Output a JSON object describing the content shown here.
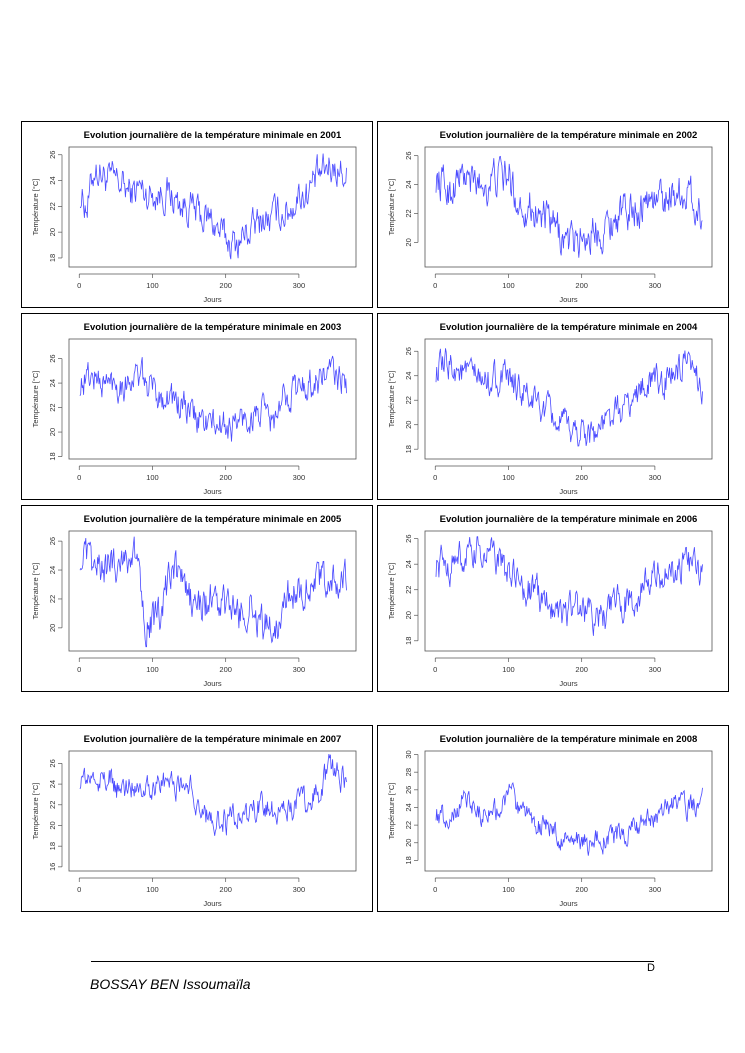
{
  "footer": {
    "author": "BOSSAY BEN Issoumaïla",
    "page_marker": "D"
  },
  "colors": {
    "line": "#4a4aff",
    "axis": "#555555"
  },
  "chart_data": [
    {
      "type": "line",
      "title": "Evolution journalière de la température minimale en 2001",
      "xlabel": "Jours",
      "ylabel": "Température [°C]",
      "xlim": [
        0,
        365
      ],
      "ylim": [
        17.3,
        26.6
      ],
      "xticks": [
        0,
        100,
        200,
        300
      ],
      "yticks": [
        18,
        20,
        22,
        24,
        26
      ],
      "x_step_days": 10,
      "values": [
        23,
        22,
        25,
        24.5,
        24,
        24,
        23.5,
        23,
        23.5,
        23,
        23,
        23,
        23,
        22.5,
        22,
        22,
        21.5,
        21,
        21,
        20,
        19.5,
        19,
        19.5,
        20,
        20.5,
        21,
        21,
        21.5,
        21.5,
        22,
        23,
        23,
        24,
        24.5,
        25,
        25,
        24.5
      ]
    },
    {
      "type": "line",
      "title": "Evolution journalière de la température minimale en 2002",
      "xlabel": "Jours",
      "ylabel": "Température [°C]",
      "xlim": [
        0,
        365
      ],
      "ylim": [
        18.3,
        26.6
      ],
      "xticks": [
        0,
        100,
        200,
        300
      ],
      "yticks": [
        20,
        22,
        24,
        26
      ],
      "x_step_days": 10,
      "values": [
        24.5,
        24,
        23.5,
        24.5,
        24.5,
        24,
        24,
        24,
        24.5,
        24.5,
        24.5,
        23,
        22.5,
        22.5,
        22,
        21.5,
        21,
        20.5,
        20,
        20,
        20.5,
        20.5,
        21,
        21,
        21.5,
        22,
        22,
        22.5,
        22.5,
        23,
        23,
        23,
        23.5,
        23.5,
        23.5,
        23,
        22
      ]
    },
    {
      "type": "line",
      "title": "Evolution journalière de la température minimale en 2003",
      "xlabel": "Jours",
      "ylabel": "Température [°C]",
      "xlim": [
        0,
        365
      ],
      "ylim": [
        17.8,
        27.6
      ],
      "xticks": [
        0,
        100,
        200,
        300
      ],
      "yticks": [
        18,
        20,
        22,
        24,
        26
      ],
      "x_step_days": 10,
      "values": [
        24,
        24.5,
        24.5,
        24,
        24,
        24,
        24,
        24.5,
        24.5,
        24,
        23.5,
        23,
        23,
        22.5,
        22,
        21.5,
        21,
        21,
        20.5,
        20.5,
        20.5,
        20.5,
        21,
        21,
        21.5,
        21.5,
        21,
        21,
        23,
        23.5,
        23.5,
        24,
        24,
        24.5,
        25,
        24.5,
        24
      ]
    },
    {
      "type": "line",
      "title": "Evolution journalière de la température minimale en 2004",
      "xlabel": "Jours",
      "ylabel": "Température [°C]",
      "xlim": [
        0,
        365
      ],
      "ylim": [
        17.2,
        27.0
      ],
      "xticks": [
        0,
        100,
        200,
        300
      ],
      "yticks": [
        18,
        20,
        22,
        24,
        26
      ],
      "x_step_days": 10,
      "values": [
        24.5,
        24.5,
        25,
        24.5,
        24,
        24,
        23.5,
        23.5,
        24,
        23.5,
        23.5,
        23,
        22.5,
        22,
        21.5,
        21,
        20.5,
        20,
        19.5,
        19.5,
        19.5,
        19.5,
        19.5,
        20,
        20.5,
        21,
        21.5,
        22,
        23,
        23.5,
        23.5,
        23.5,
        24,
        24.5,
        24.5,
        24,
        23.5
      ]
    },
    {
      "type": "line",
      "title": "Evolution journalière de la température minimale en 2005",
      "xlabel": "Jours",
      "ylabel": "Température [°C]",
      "xlim": [
        0,
        365
      ],
      "ylim": [
        18.4,
        26.7
      ],
      "xticks": [
        0,
        100,
        200,
        300
      ],
      "yticks": [
        20,
        22,
        24,
        26
      ],
      "x_step_days": 10,
      "values": [
        25,
        24.5,
        24,
        24,
        24.5,
        24.5,
        25,
        25,
        24.5,
        20.5,
        20.5,
        20.5,
        23,
        24,
        23,
        22,
        21.5,
        21.5,
        22,
        21.5,
        21.5,
        21,
        21,
        21.5,
        21,
        20,
        20,
        20.5,
        22,
        22.5,
        22.5,
        23,
        23,
        23,
        23.5,
        23,
        23
      ]
    },
    {
      "type": "line",
      "title": "Evolution journalière de la température minimale en 2006",
      "xlabel": "Jours",
      "ylabel": "Température [°C]",
      "xlim": [
        0,
        365
      ],
      "ylim": [
        17.2,
        26.6
      ],
      "xticks": [
        0,
        100,
        200,
        300
      ],
      "yticks": [
        18,
        20,
        22,
        24,
        26
      ],
      "x_step_days": 10,
      "values": [
        24,
        24,
        24,
        24.5,
        24.5,
        24.5,
        25,
        25,
        24.5,
        24,
        23,
        23,
        22,
        22,
        21.5,
        21,
        21,
        20.5,
        20.5,
        20.5,
        20.5,
        20,
        20,
        20,
        20.5,
        21,
        21,
        21.5,
        22,
        22.5,
        23,
        23,
        23.5,
        23.5,
        24,
        24,
        23.5
      ]
    },
    {
      "type": "line",
      "title": "Evolution journalière de la température minimale en 2007",
      "xlabel": "Jours",
      "ylabel": "Température [°C]",
      "xlim": [
        0,
        365
      ],
      "ylim": [
        15.6,
        27.2
      ],
      "xticks": [
        0,
        100,
        200,
        300
      ],
      "yticks": [
        16,
        18,
        20,
        22,
        24,
        26
      ],
      "x_step_days": 10,
      "values": [
        24.5,
        24.5,
        24.5,
        24.5,
        24.5,
        23.5,
        23.5,
        24,
        24,
        24,
        24,
        24,
        24,
        24,
        24,
        24,
        22,
        21,
        20.5,
        20.5,
        20.5,
        20.5,
        21,
        21,
        21.5,
        21.5,
        21.5,
        21.5,
        22,
        22,
        22,
        22.5,
        23,
        23.5,
        25.5,
        25,
        24.5
      ]
    },
    {
      "type": "line",
      "title": "Evolution journalière de la température minimale en 2008",
      "xlabel": "Jours",
      "ylabel": "Température [°C]",
      "xlim": [
        0,
        365
      ],
      "ylim": [
        16.8,
        30.4
      ],
      "xticks": [
        0,
        100,
        200,
        300
      ],
      "yticks": [
        18,
        20,
        22,
        24,
        26,
        28,
        30
      ],
      "x_step_days": 10,
      "values": [
        23.5,
        23,
        23,
        24,
        26,
        24,
        23.5,
        23.5,
        23.5,
        23.5,
        26.5,
        23.5,
        23,
        23,
        22,
        22,
        21.5,
        20.5,
        20,
        20,
        20,
        20,
        20.5,
        20.5,
        20.5,
        21,
        21,
        21.5,
        22,
        22.5,
        23,
        24,
        24.5,
        24,
        24,
        24,
        24.5
      ]
    }
  ]
}
